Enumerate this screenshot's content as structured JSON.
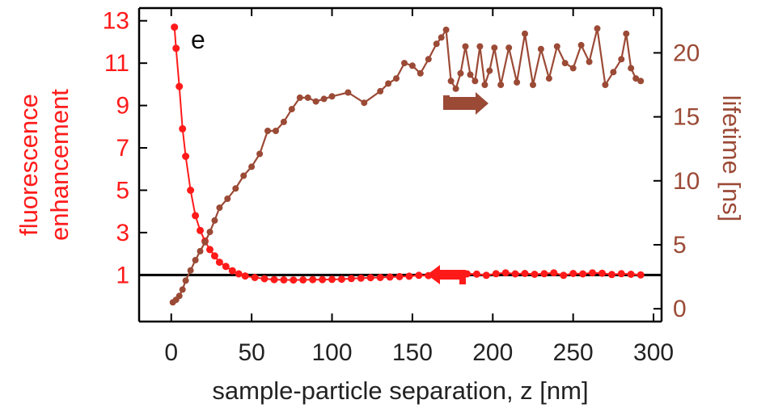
{
  "chart_data": {
    "type": "line",
    "panel_label": "e",
    "xlabel": "sample-particle separation, z [nm]",
    "ylabel_left_line1": "fluorescence",
    "ylabel_left_line2": "enhancement",
    "ylabel_right": "lifetime [ns]",
    "xlim": [
      -20,
      305
    ],
    "ylim_left": [
      -1.2,
      13.6
    ],
    "ylim_right": [
      -1,
      23.5
    ],
    "x_ticks": [
      0,
      50,
      100,
      150,
      200,
      250,
      300
    ],
    "x_tick_labels": [
      "0",
      "50",
      "100",
      "150",
      "200",
      "250",
      "300"
    ],
    "y_left_ticks": [
      1,
      3,
      5,
      7,
      9,
      11,
      13
    ],
    "y_left_tick_labels": [
      "1",
      "3",
      "5",
      "7",
      "9",
      "11",
      "13"
    ],
    "y_right_ticks": [
      0,
      5,
      10,
      15,
      20
    ],
    "y_right_tick_labels": [
      "0",
      "5",
      "10",
      "15",
      "20"
    ],
    "reference_line": {
      "y": 1,
      "axis": "left"
    },
    "colors": {
      "enhancement": "#ff1a1a",
      "lifetime": "#9b4a36",
      "axis": "#000000"
    },
    "series": [
      {
        "axis": "left",
        "x": [
          2,
          3,
          5,
          7,
          9,
          12,
          15,
          18,
          21,
          24,
          27,
          30,
          34,
          38,
          42,
          46,
          52,
          58,
          64,
          70,
          76,
          82,
          88,
          94,
          100,
          106,
          112,
          118,
          124,
          130,
          136,
          142,
          148,
          154,
          160,
          166,
          172,
          178,
          184,
          190,
          196,
          202,
          208,
          214,
          220,
          226,
          232,
          238,
          244,
          250,
          256,
          262,
          268,
          274,
          280,
          286,
          292
        ],
        "values": [
          12.7,
          11.7,
          9.9,
          7.9,
          6.6,
          5.0,
          3.8,
          3.1,
          2.6,
          2.2,
          1.9,
          1.6,
          1.4,
          1.2,
          1.05,
          0.95,
          0.88,
          0.82,
          0.78,
          0.77,
          0.76,
          0.77,
          0.78,
          0.78,
          0.79,
          0.8,
          0.83,
          0.85,
          0.87,
          0.88,
          0.9,
          0.92,
          0.94,
          0.98,
          0.97,
          1.0,
          1.03,
          1.02,
          1.05,
          1.04,
          0.98,
          1.06,
          1.1,
          1.05,
          1.07,
          1.03,
          1.06,
          1.1,
          0.98,
          1.07,
          1.05,
          1.1,
          1.08,
          1.02,
          1.06,
          1.03,
          1.0
        ]
      },
      {
        "axis": "right",
        "x": [
          1,
          3,
          5,
          7,
          9,
          12,
          15,
          18,
          21,
          24,
          27,
          30,
          35,
          40,
          45,
          50,
          55,
          60,
          65,
          70,
          75,
          80,
          85,
          90,
          95,
          100,
          110,
          120,
          130,
          135,
          140,
          145,
          150,
          155,
          160,
          165,
          168,
          171,
          174,
          177,
          180,
          183,
          186,
          189,
          192,
          195,
          198,
          201,
          205,
          210,
          215,
          220,
          225,
          230,
          235,
          240,
          245,
          250,
          255,
          260,
          265,
          270,
          275,
          280,
          283,
          286,
          289,
          292
        ],
        "values": [
          0.5,
          0.7,
          1.0,
          1.5,
          2.2,
          3.0,
          3.8,
          4.5,
          5.2,
          6.0,
          6.9,
          7.9,
          8.6,
          9.4,
          10.4,
          11.1,
          12.1,
          13.9,
          13.9,
          14.6,
          15.6,
          16.5,
          16.5,
          16.2,
          16.4,
          16.6,
          16.9,
          16.1,
          17.0,
          17.6,
          18.0,
          19.2,
          19.0,
          18.4,
          19.5,
          20.7,
          21.2,
          21.8,
          17.8,
          17.2,
          18.4,
          20.5,
          18.3,
          17.8,
          20.5,
          17.5,
          18.6,
          20.4,
          17.5,
          20.4,
          17.7,
          21.5,
          17.5,
          20.3,
          18.0,
          20.5,
          19.2,
          18.8,
          20.6,
          19.3,
          21.9,
          17.5,
          18.5,
          19.5,
          21.5,
          18.8,
          18.0,
          17.8
        ]
      }
    ]
  }
}
